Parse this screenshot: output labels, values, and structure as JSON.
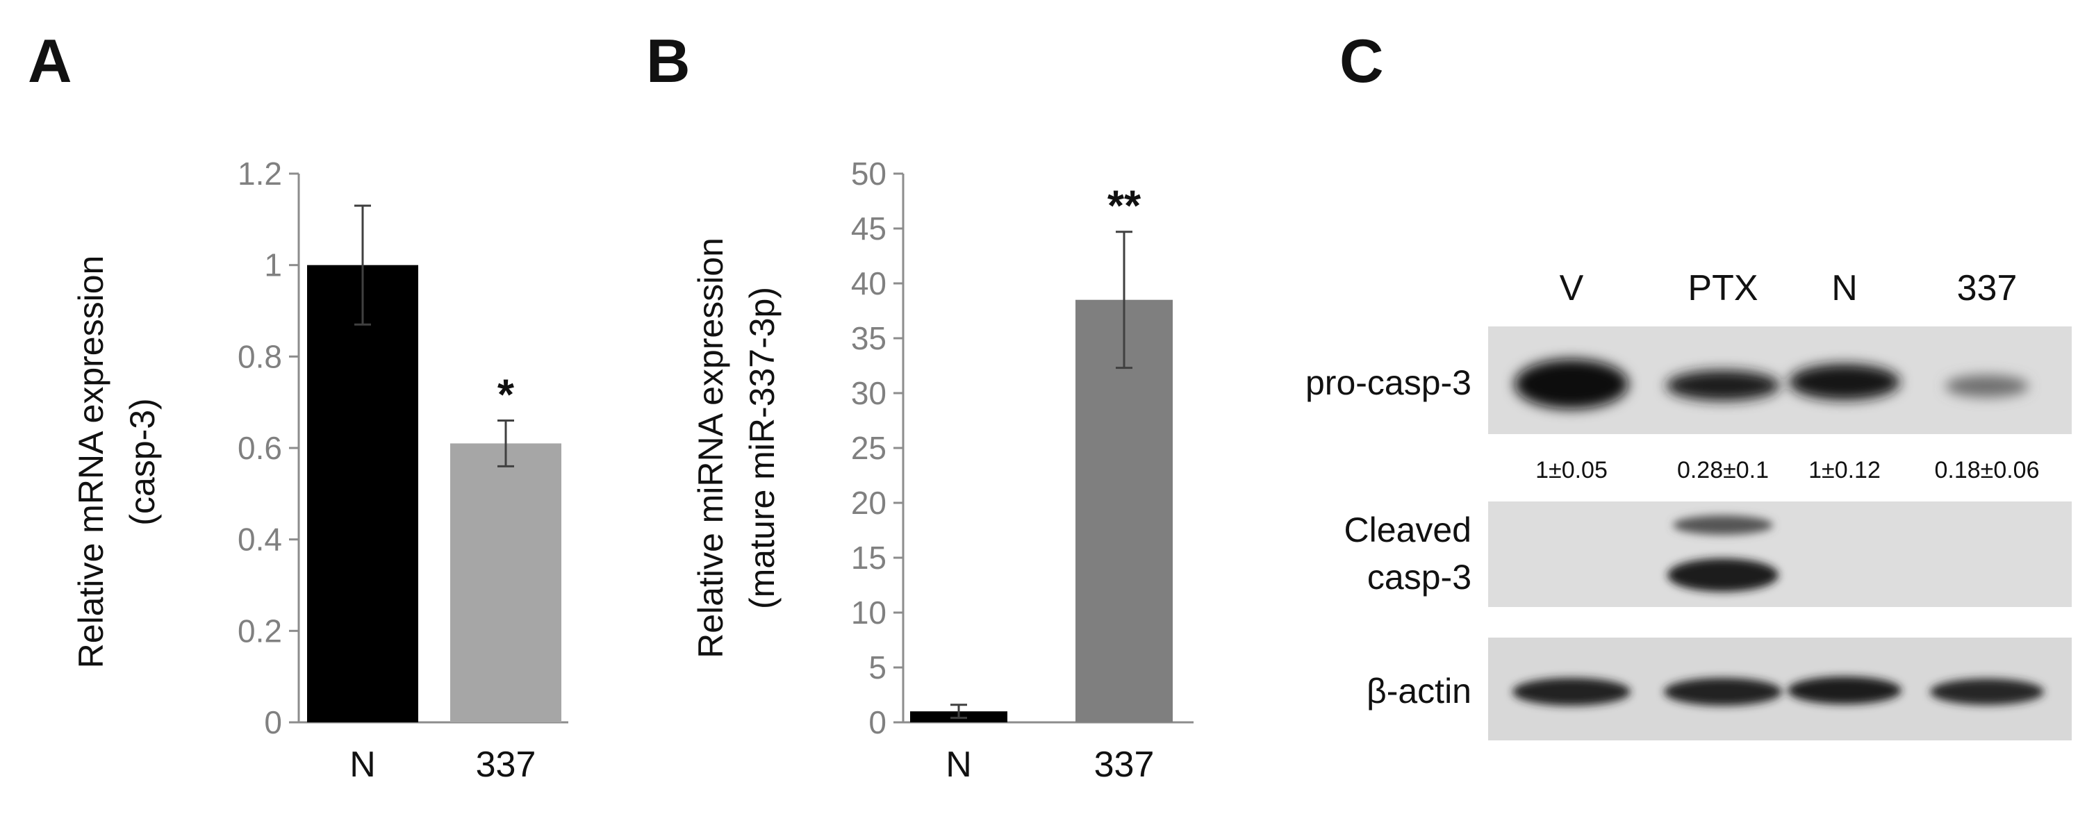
{
  "panels": {
    "A": {
      "label": "A",
      "chart_data": {
        "type": "bar",
        "categories": [
          "N",
          "337"
        ],
        "values": [
          1.0,
          0.61
        ],
        "errors": [
          0.13,
          0.05
        ],
        "ylim": [
          0,
          1.2
        ],
        "ticks": [
          0,
          0.2,
          0.4,
          0.6,
          0.8,
          1,
          1.2
        ],
        "tick_labels": [
          "0",
          "0.2",
          "0.4",
          "0.6",
          "0.8",
          "1",
          "1.2"
        ],
        "ylabel_line1": "Relative mRNA expression",
        "ylabel_line2": "(casp-3)",
        "significance": [
          "",
          "*"
        ],
        "colors": [
          "#000000",
          "#a6a6a6"
        ]
      }
    },
    "B": {
      "label": "B",
      "chart_data": {
        "type": "bar",
        "categories": [
          "N",
          "337"
        ],
        "values": [
          1.0,
          38.5
        ],
        "errors": [
          0.6,
          6.2
        ],
        "ylim": [
          0,
          50
        ],
        "ticks": [
          0,
          5,
          10,
          15,
          20,
          25,
          30,
          35,
          40,
          45,
          50
        ],
        "tick_labels": [
          "0",
          "5",
          "10",
          "15",
          "20",
          "25",
          "30",
          "35",
          "40",
          "45",
          "50"
        ],
        "ylabel_line1": "Relative miRNA expression",
        "ylabel_line2": "(mature miR-337-3p)",
        "significance": [
          "",
          "**"
        ],
        "colors": [
          "#000000",
          "#7f7f7f"
        ]
      }
    },
    "C": {
      "label": "C",
      "lanes": [
        "V",
        "PTX",
        "N",
        "337"
      ],
      "rows": {
        "pro": {
          "label": "pro-casp-3",
          "intensities": [
            1.0,
            0.55,
            0.7,
            0.25
          ]
        },
        "quant": [
          "1±0.05",
          "0.28±0.1",
          "1±0.12",
          "0.18±0.06"
        ],
        "cleaved": {
          "label_line1": "Cleaved",
          "label_line2": "casp-3"
        },
        "actin": {
          "label": "β-actin"
        }
      }
    }
  }
}
